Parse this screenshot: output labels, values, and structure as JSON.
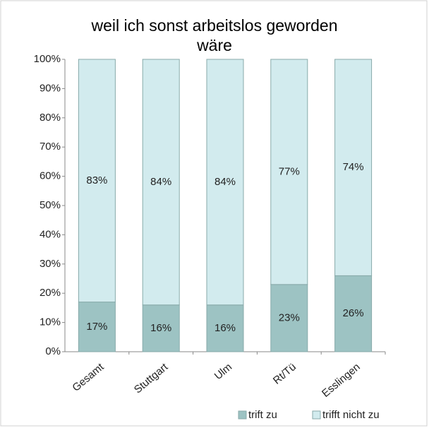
{
  "chart_data": {
    "type": "stacked_bar",
    "title": "weil ich sonst arbeitslos geworden wäre",
    "categories": [
      "Gesamt",
      "Stuttgart",
      "Ulm",
      "Rt/Tü",
      "Esslingen"
    ],
    "series": [
      {
        "name": "trift zu",
        "color": "#9dc3c3",
        "values": [
          17,
          16,
          16,
          23,
          26
        ],
        "value_labels": [
          "17%",
          "16%",
          "16%",
          "23%",
          "26%"
        ]
      },
      {
        "name": "trifft nicht zu",
        "color": "#d2ebee",
        "values": [
          83,
          84,
          84,
          77,
          74
        ],
        "value_labels": [
          "83%",
          "84%",
          "84%",
          "77%",
          "74%"
        ]
      }
    ],
    "ylim": [
      0,
      100
    ],
    "yticks": [
      {
        "value": 0,
        "label": "0%"
      },
      {
        "value": 10,
        "label": "10%"
      },
      {
        "value": 20,
        "label": "20%"
      },
      {
        "value": 30,
        "label": "30%"
      },
      {
        "value": 40,
        "label": "40%"
      },
      {
        "value": 50,
        "label": "50%"
      },
      {
        "value": 60,
        "label": "60%"
      },
      {
        "value": 70,
        "label": "70%"
      },
      {
        "value": 80,
        "label": "80%"
      },
      {
        "value": 90,
        "label": "90%"
      },
      {
        "value": 100,
        "label": "100%"
      }
    ],
    "legend": "bottom-right"
  }
}
